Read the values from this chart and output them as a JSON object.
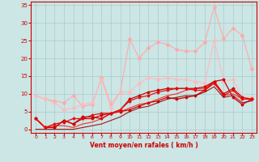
{
  "bg_color": "#cce5e5",
  "grid_color": "#aacccc",
  "xlabel": "Vent moyen/en rafales ( km/h )",
  "xlabel_color": "#cc0000",
  "tick_color": "#cc0000",
  "xlim": [
    -0.5,
    23.5
  ],
  "ylim": [
    -1,
    36
  ],
  "xticks": [
    0,
    1,
    2,
    3,
    4,
    5,
    6,
    7,
    8,
    9,
    10,
    11,
    12,
    13,
    14,
    15,
    16,
    17,
    18,
    19,
    20,
    21,
    22,
    23
  ],
  "yticks": [
    0,
    5,
    10,
    15,
    20,
    25,
    30,
    35
  ],
  "series": [
    {
      "x": [
        0,
        1,
        2,
        3,
        4,
        5,
        6,
        7,
        8,
        9,
        10,
        11,
        12,
        13,
        14,
        15,
        16,
        17,
        18,
        19,
        20,
        21,
        22,
        23
      ],
      "y": [
        9.5,
        8.5,
        8.0,
        7.5,
        9.5,
        6.5,
        7.0,
        14.5,
        7.0,
        10.5,
        25.5,
        20.0,
        23.0,
        24.5,
        24.0,
        22.5,
        22.0,
        22.0,
        24.5,
        34.5,
        25.5,
        28.5,
        26.5,
        17.0
      ],
      "color": "#ffaaaa",
      "lw": 0.8,
      "marker": "D",
      "ms": 2.0,
      "alpha": 1.0
    },
    {
      "x": [
        0,
        1,
        2,
        3,
        4,
        5,
        6,
        7,
        8,
        9,
        10,
        11,
        12,
        13,
        14,
        15,
        16,
        17,
        18,
        19,
        20,
        21,
        22,
        23
      ],
      "y": [
        9.5,
        8.5,
        7.5,
        5.5,
        6.0,
        7.0,
        7.5,
        14.0,
        6.0,
        10.5,
        10.5,
        13.0,
        14.5,
        14.0,
        14.5,
        14.0,
        14.0,
        13.5,
        13.0,
        25.0,
        13.5,
        14.0,
        9.0,
        9.0
      ],
      "color": "#ffbbbb",
      "lw": 0.8,
      "marker": "D",
      "ms": 2.0,
      "alpha": 1.0
    },
    {
      "x": [
        0,
        1,
        2,
        3,
        4,
        5,
        6,
        7,
        8,
        9,
        10,
        11,
        12,
        13,
        14,
        15,
        16,
        17,
        18,
        19,
        20,
        21,
        22,
        23
      ],
      "y": [
        3.0,
        0.5,
        0.5,
        2.5,
        1.5,
        3.5,
        3.5,
        3.0,
        4.5,
        5.0,
        5.5,
        6.5,
        7.5,
        8.0,
        9.0,
        8.5,
        9.0,
        9.5,
        11.0,
        13.5,
        14.0,
        9.0,
        7.0,
        8.5
      ],
      "color": "#cc0000",
      "lw": 0.9,
      "marker": "D",
      "ms": 1.5,
      "alpha": 1.0
    },
    {
      "x": [
        0,
        1,
        2,
        3,
        4,
        5,
        6,
        7,
        8,
        9,
        10,
        11,
        12,
        13,
        14,
        15,
        16,
        17,
        18,
        19,
        20,
        21,
        22,
        23
      ],
      "y": [
        3.0,
        0.5,
        0.5,
        2.5,
        1.5,
        3.0,
        3.0,
        4.0,
        4.5,
        5.5,
        8.5,
        9.5,
        10.5,
        11.0,
        11.5,
        11.5,
        11.5,
        11.5,
        12.0,
        13.5,
        10.0,
        11.5,
        9.0,
        8.5
      ],
      "color": "#cc0000",
      "lw": 0.9,
      "marker": "D",
      "ms": 1.5,
      "alpha": 1.0
    },
    {
      "x": [
        0,
        1,
        2,
        3,
        4,
        5,
        6,
        7,
        8,
        9,
        10,
        11,
        12,
        13,
        14,
        15,
        16,
        17,
        18,
        19,
        20,
        21,
        22,
        23
      ],
      "y": [
        3.0,
        0.5,
        1.5,
        2.0,
        3.0,
        3.0,
        4.0,
        4.5,
        4.5,
        5.5,
        8.0,
        9.0,
        9.5,
        10.5,
        11.0,
        11.5,
        11.5,
        11.0,
        11.0,
        13.0,
        9.5,
        11.0,
        8.5,
        8.5
      ],
      "color": "#dd1111",
      "lw": 0.9,
      "marker": "D",
      "ms": 1.5,
      "alpha": 1.0
    },
    {
      "x": [
        0,
        1,
        2,
        3,
        4,
        5,
        6,
        7,
        8,
        9,
        10,
        11,
        12,
        13,
        14,
        15,
        16,
        17,
        18,
        19,
        20,
        21,
        22,
        23
      ],
      "y": [
        3.0,
        0.5,
        1.0,
        1.0,
        0.5,
        1.5,
        2.0,
        3.0,
        4.5,
        5.0,
        6.0,
        7.0,
        7.5,
        8.5,
        9.5,
        10.0,
        11.0,
        11.5,
        11.5,
        13.5,
        9.5,
        10.0,
        8.5,
        8.5
      ],
      "color": "#ff0000",
      "lw": 0.8,
      "marker": "None",
      "ms": 0,
      "alpha": 0.8
    },
    {
      "x": [
        0,
        1,
        2,
        3,
        4,
        5,
        6,
        7,
        8,
        9,
        10,
        11,
        12,
        13,
        14,
        15,
        16,
        17,
        18,
        19,
        20,
        21,
        22,
        23
      ],
      "y": [
        0,
        0,
        0,
        0,
        0,
        0.5,
        1.0,
        1.5,
        2.5,
        3.5,
        5.0,
        6.0,
        6.5,
        7.5,
        8.5,
        9.0,
        9.5,
        9.5,
        10.5,
        12.0,
        9.0,
        9.5,
        7.5,
        8.0
      ],
      "color": "#990000",
      "lw": 0.8,
      "marker": "None",
      "ms": 0,
      "alpha": 0.9
    }
  ]
}
